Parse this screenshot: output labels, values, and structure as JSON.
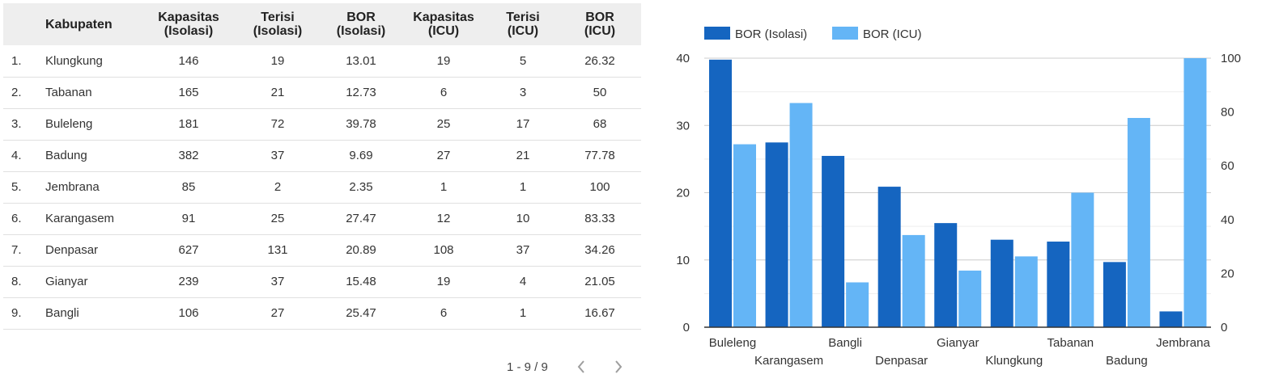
{
  "table": {
    "headers": [
      {
        "l1": "",
        "l2": ""
      },
      {
        "l1": "Kabupaten",
        "l2": ""
      },
      {
        "l1": "Kapasitas",
        "l2": "(Isolasi)"
      },
      {
        "l1": "Terisi",
        "l2": "(Isolasi)"
      },
      {
        "l1": "BOR",
        "l2": "(Isolasi)"
      },
      {
        "l1": "Kapasitas",
        "l2": "(ICU)"
      },
      {
        "l1": "Terisi",
        "l2": "(ICU)"
      },
      {
        "l1": "BOR",
        "l2": "(ICU)"
      }
    ],
    "rows": [
      [
        "1.",
        "Klungkung",
        "146",
        "19",
        "13.01",
        "19",
        "5",
        "26.32"
      ],
      [
        "2.",
        "Tabanan",
        "165",
        "21",
        "12.73",
        "6",
        "3",
        "50"
      ],
      [
        "3.",
        "Buleleng",
        "181",
        "72",
        "39.78",
        "25",
        "17",
        "68"
      ],
      [
        "4.",
        "Badung",
        "382",
        "37",
        "9.69",
        "27",
        "21",
        "77.78"
      ],
      [
        "5.",
        "Jembrana",
        "85",
        "2",
        "2.35",
        "1",
        "1",
        "100"
      ],
      [
        "6.",
        "Karangasem",
        "91",
        "25",
        "27.47",
        "12",
        "10",
        "83.33"
      ],
      [
        "7.",
        "Denpasar",
        "627",
        "131",
        "20.89",
        "108",
        "37",
        "34.26"
      ],
      [
        "8.",
        "Gianyar",
        "239",
        "37",
        "15.48",
        "19",
        "4",
        "21.05"
      ],
      [
        "9.",
        "Bangli",
        "106",
        "27",
        "25.47",
        "6",
        "1",
        "16.67"
      ]
    ]
  },
  "pager": {
    "text": "1 - 9 / 9",
    "prev_icon": "chevron-left-icon",
    "next_icon": "chevron-right-icon"
  },
  "chart_data": {
    "type": "bar",
    "categories": [
      "Buleleng",
      "Karangasem",
      "Bangli",
      "Denpasar",
      "Gianyar",
      "Klungkung",
      "Tabanan",
      "Badung",
      "Jembrana"
    ],
    "series": [
      {
        "name": "BOR (Isolasi)",
        "values": [
          39.78,
          27.47,
          25.47,
          20.89,
          15.48,
          13.01,
          12.73,
          9.69,
          2.35
        ],
        "axis": "left",
        "color": "#1565c0"
      },
      {
        "name": "BOR (ICU)",
        "values": [
          68,
          83.33,
          16.67,
          34.26,
          21.05,
          26.32,
          50,
          77.78,
          100
        ],
        "axis": "right",
        "color": "#64b5f6"
      }
    ],
    "ylim_left": [
      0,
      40
    ],
    "ylim_right": [
      0,
      100
    ],
    "yticks_left": [
      0,
      10,
      20,
      30,
      40
    ],
    "yticks_right": [
      0,
      20,
      40,
      60,
      80,
      100
    ],
    "legend_position": "top-left",
    "grid": true
  }
}
